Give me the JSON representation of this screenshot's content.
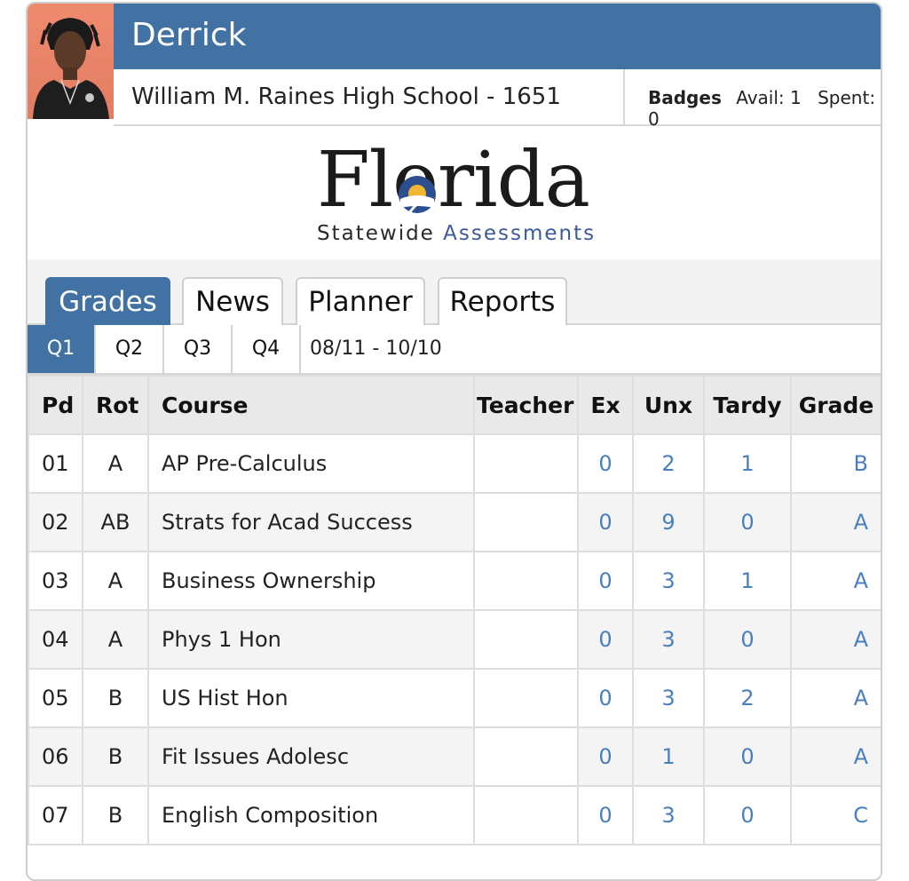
{
  "student": {
    "name": "Derrick",
    "school": "William M. Raines High School - 1651"
  },
  "badges": {
    "label": "Badges",
    "avail": "Avail: 1",
    "spent": "Spent: 0"
  },
  "logo": {
    "word": "Florida",
    "sub_prefix": "Statewide",
    "sub_accent": "Assessments"
  },
  "tabs": [
    {
      "label": "Grades",
      "active": true
    },
    {
      "label": "News"
    },
    {
      "label": "Planner"
    },
    {
      "label": "Reports"
    }
  ],
  "quarters": [
    {
      "label": "Q1",
      "active": true
    },
    {
      "label": "Q2"
    },
    {
      "label": "Q3"
    },
    {
      "label": "Q4"
    }
  ],
  "date_range": "08/11 - 10/10",
  "table": {
    "headers": {
      "pd": "Pd",
      "rot": "Rot",
      "course": "Course",
      "teacher": "Teacher",
      "ex": "Ex",
      "unx": "Unx",
      "tardy": "Tardy",
      "grade": "Grade"
    },
    "rows": [
      {
        "pd": "01",
        "rot": "A",
        "course": "AP Pre-Calculus",
        "teacher": "",
        "ex": "0",
        "unx": "2",
        "tardy": "1",
        "grade": "B"
      },
      {
        "pd": "02",
        "rot": "AB",
        "course": "Strats for Acad Success",
        "teacher": "",
        "ex": "0",
        "unx": "9",
        "tardy": "0",
        "grade": "A"
      },
      {
        "pd": "03",
        "rot": "A",
        "course": "Business Ownership",
        "teacher": "",
        "ex": "0",
        "unx": "3",
        "tardy": "1",
        "grade": "A"
      },
      {
        "pd": "04",
        "rot": "A",
        "course": "Phys 1 Hon",
        "teacher": "",
        "ex": "0",
        "unx": "3",
        "tardy": "0",
        "grade": "A"
      },
      {
        "pd": "05",
        "rot": "B",
        "course": "US Hist Hon",
        "teacher": "",
        "ex": "0",
        "unx": "3",
        "tardy": "2",
        "grade": "A"
      },
      {
        "pd": "06",
        "rot": "B",
        "course": "Fit Issues Adolesc",
        "teacher": "",
        "ex": "0",
        "unx": "1",
        "tardy": "0",
        "grade": "A"
      },
      {
        "pd": "07",
        "rot": "B",
        "course": "English Composition",
        "teacher": "",
        "ex": "0",
        "unx": "3",
        "tardy": "0",
        "grade": "C"
      }
    ]
  }
}
